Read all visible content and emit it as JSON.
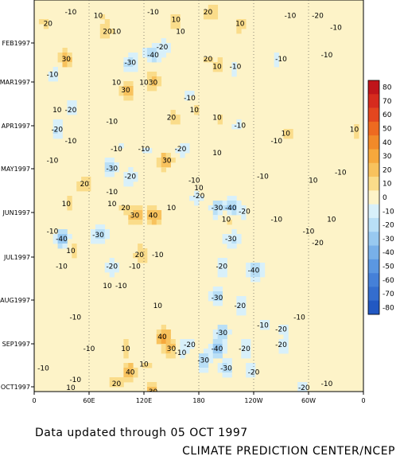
{
  "chart_data": {
    "type": "heatmap",
    "subtype": "hovmoller-contour",
    "xlabel": "",
    "ylabel": "",
    "x_ticks": [
      "0",
      "60E",
      "120E",
      "180",
      "120W",
      "60W",
      "0"
    ],
    "x_values": [
      0,
      60,
      120,
      180,
      240,
      300,
      360
    ],
    "xlim": [
      0,
      360
    ],
    "y_ticks": [
      "FEB1997",
      "MAR1997",
      "APR1997",
      "MAY1997",
      "JUN1997",
      "JUL1997",
      "AUG1997",
      "SEP1997",
      "OCT1997"
    ],
    "ylim": [
      "JAN1997",
      "05 OCT 1997"
    ],
    "contour_interval": 10,
    "colorbar": {
      "placement": "right",
      "levels": [
        80,
        70,
        60,
        50,
        40,
        30,
        20,
        10,
        0,
        -10,
        -20,
        -30,
        -40,
        -50,
        -60,
        -70,
        -80
      ],
      "labels": [
        "80",
        "70",
        "60",
        "50",
        "40",
        "30",
        "20",
        "10",
        "0",
        "-10",
        "-20",
        "-30",
        "-40",
        "-50",
        "-60",
        "-70",
        "-80"
      ],
      "colors": [
        "#c0151b",
        "#d62b1e",
        "#e3461f",
        "#ee6a20",
        "#f28a29",
        "#f6a83c",
        "#f8c25d",
        "#fadc8a",
        "#fdf3c8",
        "#d8f0fa",
        "#b9dff6",
        "#98c9f0",
        "#78b0e9",
        "#5b97e1",
        "#4580d8",
        "#346dce",
        "#2258c2"
      ]
    },
    "contour_labels": [
      {
        "value": 20,
        "lon": 15,
        "t": 0.06
      },
      {
        "value": -10,
        "lon": 40,
        "t": 0.03
      },
      {
        "value": 10,
        "lon": 70,
        "t": 0.04
      },
      {
        "value": 20,
        "lon": 80,
        "t": 0.08
      },
      {
        "value": 10,
        "lon": 90,
        "t": 0.08
      },
      {
        "value": -10,
        "lon": 130,
        "t": 0.03
      },
      {
        "value": 10,
        "lon": 155,
        "t": 0.05
      },
      {
        "value": 10,
        "lon": 160,
        "t": 0.08
      },
      {
        "value": 20,
        "lon": 190,
        "t": 0.03
      },
      {
        "value": 10,
        "lon": 225,
        "t": 0.06
      },
      {
        "value": -10,
        "lon": 280,
        "t": 0.04
      },
      {
        "value": -20,
        "lon": 310,
        "t": 0.04
      },
      {
        "value": -10,
        "lon": 330,
        "t": 0.07
      },
      {
        "value": 30,
        "lon": 35,
        "t": 0.15
      },
      {
        "value": -10,
        "lon": 20,
        "t": 0.19
      },
      {
        "value": -30,
        "lon": 105,
        "t": 0.16
      },
      {
        "value": -40,
        "lon": 130,
        "t": 0.14
      },
      {
        "value": -20,
        "lon": 140,
        "t": 0.12
      },
      {
        "value": 20,
        "lon": 190,
        "t": 0.15
      },
      {
        "value": 10,
        "lon": 200,
        "t": 0.17
      },
      {
        "value": 10,
        "lon": 90,
        "t": 0.21
      },
      {
        "value": 30,
        "lon": 100,
        "t": 0.23
      },
      {
        "value": 10,
        "lon": 120,
        "t": 0.21
      },
      {
        "value": 30,
        "lon": 130,
        "t": 0.21
      },
      {
        "value": -10,
        "lon": 170,
        "t": 0.25
      },
      {
        "value": -10,
        "lon": 220,
        "t": 0.17
      },
      {
        "value": -10,
        "lon": 270,
        "t": 0.15
      },
      {
        "value": -10,
        "lon": 320,
        "t": 0.14
      },
      {
        "value": 10,
        "lon": 25,
        "t": 0.28
      },
      {
        "value": -20,
        "lon": 40,
        "t": 0.28
      },
      {
        "value": -20,
        "lon": 25,
        "t": 0.33
      },
      {
        "value": -10,
        "lon": 85,
        "t": 0.31
      },
      {
        "value": 20,
        "lon": 150,
        "t": 0.3
      },
      {
        "value": 10,
        "lon": 175,
        "t": 0.28
      },
      {
        "value": 10,
        "lon": 200,
        "t": 0.3
      },
      {
        "value": -10,
        "lon": 225,
        "t": 0.32
      },
      {
        "value": -10,
        "lon": 265,
        "t": 0.36
      },
      {
        "value": 10,
        "lon": 275,
        "t": 0.34
      },
      {
        "value": 10,
        "lon": 350,
        "t": 0.33
      },
      {
        "value": -10,
        "lon": 40,
        "t": 0.36
      },
      {
        "value": -10,
        "lon": 90,
        "t": 0.38
      },
      {
        "value": -10,
        "lon": 120,
        "t": 0.38
      },
      {
        "value": -20,
        "lon": 160,
        "t": 0.38
      },
      {
        "value": 10,
        "lon": 200,
        "t": 0.39
      },
      {
        "value": -10,
        "lon": 20,
        "t": 0.41
      },
      {
        "value": -30,
        "lon": 85,
        "t": 0.43
      },
      {
        "value": -20,
        "lon": 105,
        "t": 0.45
      },
      {
        "value": 20,
        "lon": 55,
        "t": 0.47
      },
      {
        "value": -10,
        "lon": 85,
        "t": 0.49
      },
      {
        "value": 30,
        "lon": 145,
        "t": 0.41
      },
      {
        "value": -10,
        "lon": 175,
        "t": 0.46
      },
      {
        "value": 10,
        "lon": 180,
        "t": 0.48
      },
      {
        "value": -20,
        "lon": 180,
        "t": 0.5
      },
      {
        "value": -10,
        "lon": 250,
        "t": 0.45
      },
      {
        "value": 10,
        "lon": 305,
        "t": 0.46
      },
      {
        "value": -10,
        "lon": 335,
        "t": 0.44
      },
      {
        "value": 10,
        "lon": 35,
        "t": 0.52
      },
      {
        "value": 10,
        "lon": 85,
        "t": 0.52
      },
      {
        "value": 20,
        "lon": 100,
        "t": 0.53
      },
      {
        "value": 30,
        "lon": 110,
        "t": 0.55
      },
      {
        "value": 40,
        "lon": 130,
        "t": 0.55
      },
      {
        "value": 10,
        "lon": 150,
        "t": 0.53
      },
      {
        "value": -30,
        "lon": 200,
        "t": 0.53
      },
      {
        "value": 10,
        "lon": 210,
        "t": 0.56
      },
      {
        "value": -40,
        "lon": 215,
        "t": 0.53
      },
      {
        "value": -20,
        "lon": 230,
        "t": 0.54
      },
      {
        "value": -10,
        "lon": 265,
        "t": 0.56
      },
      {
        "value": 10,
        "lon": 325,
        "t": 0.56
      },
      {
        "value": -10,
        "lon": 20,
        "t": 0.59
      },
      {
        "value": -40,
        "lon": 30,
        "t": 0.61
      },
      {
        "value": -30,
        "lon": 70,
        "t": 0.6
      },
      {
        "value": 10,
        "lon": 40,
        "t": 0.64
      },
      {
        "value": -30,
        "lon": 215,
        "t": 0.61
      },
      {
        "value": -10,
        "lon": 300,
        "t": 0.59
      },
      {
        "value": -20,
        "lon": 310,
        "t": 0.62
      },
      {
        "value": -10,
        "lon": 30,
        "t": 0.68
      },
      {
        "value": -20,
        "lon": 85,
        "t": 0.68
      },
      {
        "value": -10,
        "lon": 110,
        "t": 0.68
      },
      {
        "value": 20,
        "lon": 115,
        "t": 0.65
      },
      {
        "value": -10,
        "lon": 135,
        "t": 0.65
      },
      {
        "value": -20,
        "lon": 205,
        "t": 0.68
      },
      {
        "value": -40,
        "lon": 240,
        "t": 0.69
      },
      {
        "value": 10,
        "lon": 80,
        "t": 0.73
      },
      {
        "value": -10,
        "lon": 95,
        "t": 0.73
      },
      {
        "value": -30,
        "lon": 200,
        "t": 0.76
      },
      {
        "value": -20,
        "lon": 225,
        "t": 0.78
      },
      {
        "value": 10,
        "lon": 135,
        "t": 0.78
      },
      {
        "value": -10,
        "lon": 45,
        "t": 0.81
      },
      {
        "value": -10,
        "lon": 250,
        "t": 0.83
      },
      {
        "value": -10,
        "lon": 290,
        "t": 0.81
      },
      {
        "value": -20,
        "lon": 270,
        "t": 0.84
      },
      {
        "value": 40,
        "lon": 140,
        "t": 0.86
      },
      {
        "value": -30,
        "lon": 205,
        "t": 0.85
      },
      {
        "value": -40,
        "lon": 200,
        "t": 0.89
      },
      {
        "value": -20,
        "lon": 170,
        "t": 0.88
      },
      {
        "value": -10,
        "lon": 60,
        "t": 0.89
      },
      {
        "value": 10,
        "lon": 100,
        "t": 0.89
      },
      {
        "value": 30,
        "lon": 150,
        "t": 0.89
      },
      {
        "value": -10,
        "lon": 160,
        "t": 0.9
      },
      {
        "value": -20,
        "lon": 230,
        "t": 0.89
      },
      {
        "value": -20,
        "lon": 270,
        "t": 0.88
      },
      {
        "value": 40,
        "lon": 105,
        "t": 0.95
      },
      {
        "value": 10,
        "lon": 120,
        "t": 0.93
      },
      {
        "value": -10,
        "lon": 10,
        "t": 0.94
      },
      {
        "value": -30,
        "lon": 185,
        "t": 0.92
      },
      {
        "value": -30,
        "lon": 210,
        "t": 0.94
      },
      {
        "value": -20,
        "lon": 240,
        "t": 0.95
      },
      {
        "value": -10,
        "lon": 45,
        "t": 0.97
      },
      {
        "value": 10,
        "lon": 40,
        "t": 0.99
      },
      {
        "value": 20,
        "lon": 90,
        "t": 0.98
      },
      {
        "value": 30,
        "lon": 130,
        "t": 1.0
      },
      {
        "value": -20,
        "lon": 295,
        "t": 0.99
      },
      {
        "value": -10,
        "lon": 320,
        "t": 0.98
      }
    ]
  },
  "footer": {
    "note": "Data updated through 05 OCT 1997",
    "credit": "CLIMATE PREDICTION CENTER/NCEP"
  }
}
